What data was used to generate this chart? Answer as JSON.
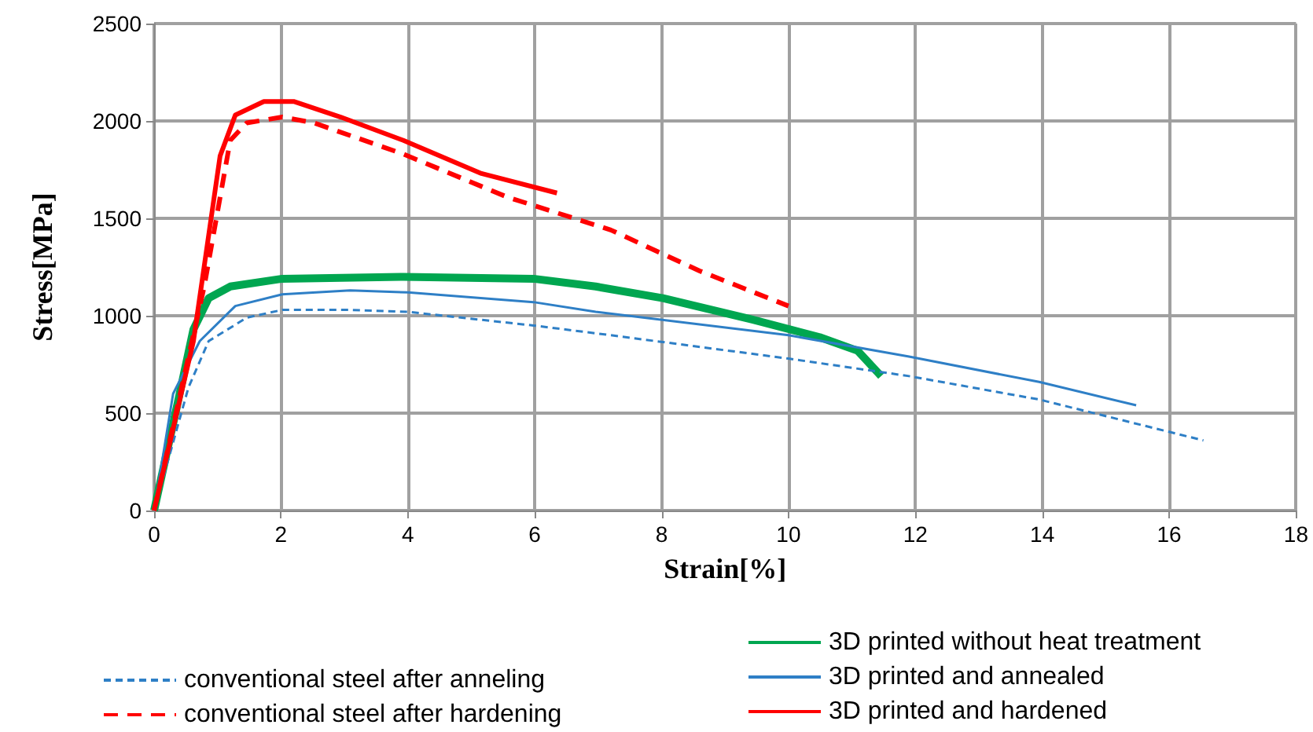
{
  "chart_data": {
    "type": "line",
    "xlabel": "Strain[%]",
    "ylabel": "Stress[MPa]",
    "xlim": [
      0,
      18
    ],
    "xticks": [
      0,
      2,
      4,
      6,
      8,
      10,
      12,
      14,
      16,
      18
    ],
    "ylim": [
      0,
      2500
    ],
    "yticks": [
      0,
      500,
      1000,
      1500,
      2000,
      2500
    ],
    "grid": true,
    "legend": "bottom",
    "marker": "none",
    "series": [
      {
        "name": "3D printed without heat treatment",
        "color": "#00a650",
        "line_style": "solid",
        "x": [
          0,
          0.37,
          0.62,
          0.86,
          1.2,
          2.02,
          3.93,
          5.98,
          6.96,
          8.02,
          9.43,
          10.49,
          11.09,
          11.46
        ],
        "values": [
          0,
          550,
          930,
          1090,
          1150,
          1190,
          1200,
          1190,
          1150,
          1090,
          980,
          890,
          820,
          690
        ]
      },
      {
        "name": "conventional steel after anneling",
        "color": "#2e7fc6",
        "line_style": "dashed",
        "x": [
          0,
          0.54,
          0.86,
          1.46,
          2.02,
          3.09,
          4.0,
          5.98,
          7.2,
          10.0,
          11.9,
          13.95,
          16.54
        ],
        "values": [
          0,
          630,
          870,
          990,
          1030,
          1030,
          1020,
          950,
          900,
          780,
          690,
          570,
          360
        ]
      },
      {
        "name": "3D printed and annealed",
        "color": "#2e7fc6",
        "line_style": "solid",
        "x": [
          0,
          0.3,
          0.72,
          1.28,
          2.02,
          3.09,
          4.0,
          5.98,
          6.96,
          10.0,
          11.9,
          13.95,
          15.48
        ],
        "values": [
          0,
          600,
          870,
          1050,
          1110,
          1130,
          1120,
          1070,
          1020,
          900,
          790,
          660,
          540
        ]
      },
      {
        "name": "conventional steel after hardening",
        "color": "#ff0000",
        "line_style": "dashed",
        "x": [
          0,
          0.79,
          1.2,
          1.46,
          2.02,
          2.52,
          3.93,
          5.56,
          7.2,
          8.6,
          10.0
        ],
        "values": [
          0,
          1150,
          1900,
          1990,
          2020,
          1990,
          1830,
          1610,
          1440,
          1230,
          1050
        ]
      },
      {
        "name": "3D printed and hardened",
        "color": "#ff0000",
        "line_style": "solid",
        "x": [
          0,
          0.62,
          1.04,
          1.28,
          1.73,
          2.2,
          2.94,
          3.93,
          5.16,
          6.35
        ],
        "values": [
          0,
          870,
          1820,
          2030,
          2100,
          2100,
          2020,
          1900,
          1730,
          1630
        ]
      }
    ]
  }
}
